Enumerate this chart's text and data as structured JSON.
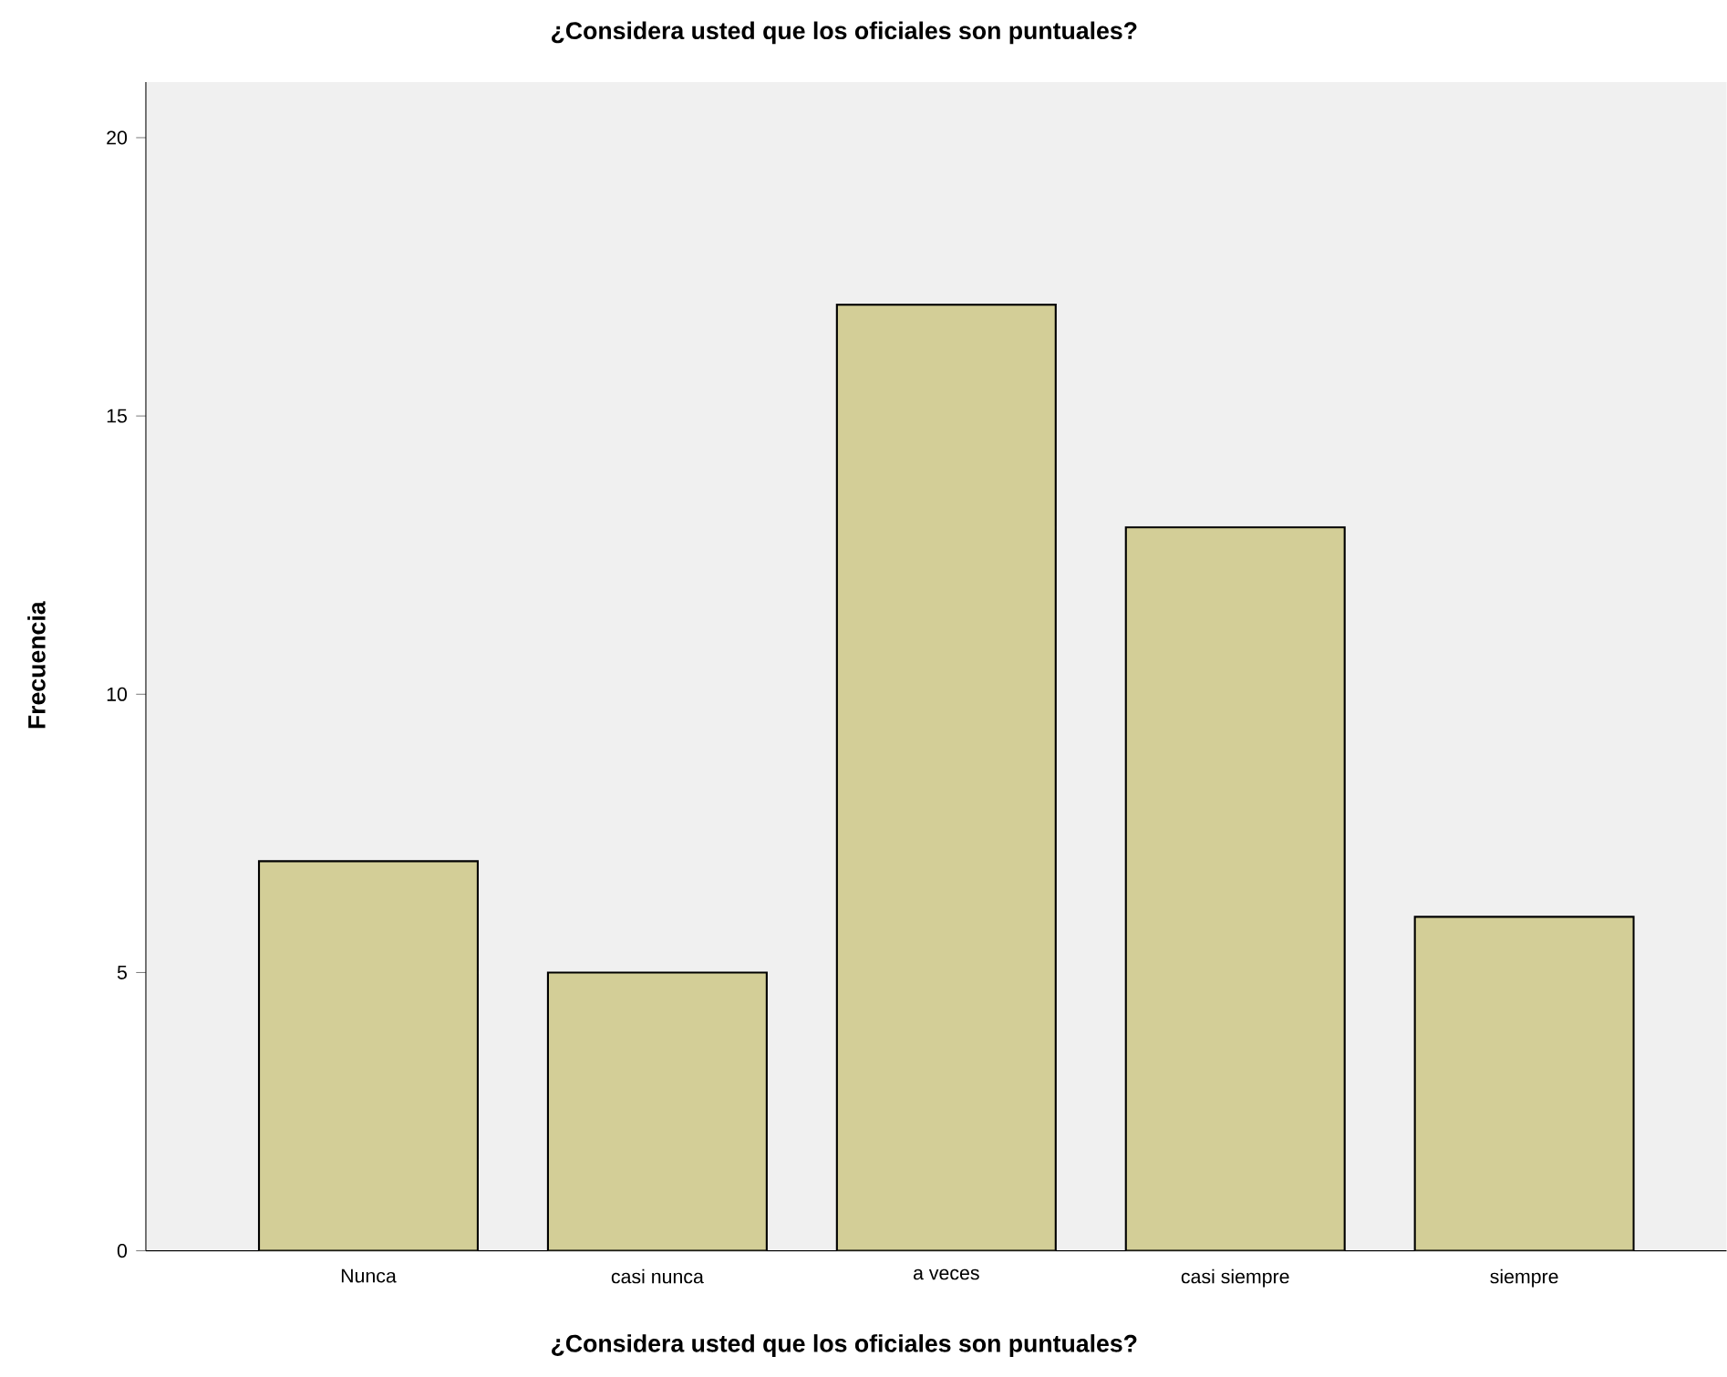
{
  "chart_data": {
    "type": "bar",
    "title": "¿Considera usted que los oficiales son puntuales?",
    "xlabel": "¿Considera usted que los oficiales son puntuales?",
    "ylabel": "Frecuencia",
    "categories": [
      "Nunca",
      "casi nunca",
      "a veces",
      "casi siempre",
      "siempre"
    ],
    "values": [
      7,
      5,
      17,
      13,
      6
    ],
    "color": "#d3ce97",
    "ylim": [
      0,
      21
    ],
    "yticks": [
      0,
      5,
      10,
      15,
      20
    ],
    "grid": false
  }
}
